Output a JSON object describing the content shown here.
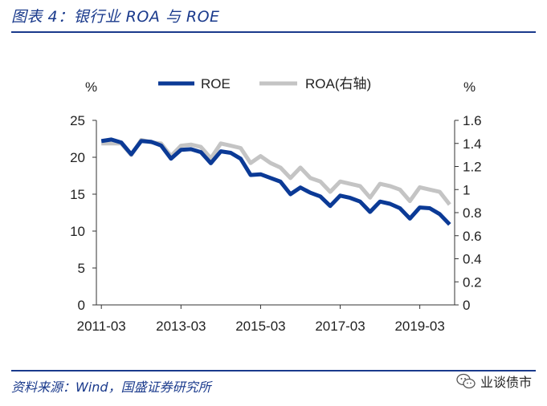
{
  "header": {
    "title": "图表 4：银行业 ROA 与 ROE"
  },
  "footer": {
    "source": "资料来源：Wind，国盛证券研究所",
    "watermark": "业谈债市"
  },
  "colors": {
    "roe": "#0b3a96",
    "roa": "#c4c4c4",
    "accent": "#1a3a8c"
  },
  "chart_data": {
    "type": "line",
    "title": "",
    "x": [
      "2011-03",
      "2011-06",
      "2011-09",
      "2011-12",
      "2012-03",
      "2012-06",
      "2012-09",
      "2012-12",
      "2013-03",
      "2013-06",
      "2013-09",
      "2013-12",
      "2014-03",
      "2014-06",
      "2014-09",
      "2014-12",
      "2015-03",
      "2015-06",
      "2015-09",
      "2015-12",
      "2016-03",
      "2016-06",
      "2016-09",
      "2016-12",
      "2017-03",
      "2017-06",
      "2017-09",
      "2017-12",
      "2018-03",
      "2018-06",
      "2018-09",
      "2018-12",
      "2019-03",
      "2019-06",
      "2019-09",
      "2019-12"
    ],
    "x_ticks": [
      "2011-03",
      "2013-03",
      "2015-03",
      "2017-03",
      "2019-03"
    ],
    "y_left_label": "%",
    "y_right_label": "%",
    "y_left_lim": [
      0,
      25
    ],
    "y_left_ticks": [
      "0",
      "5",
      "10",
      "15",
      "20",
      "25"
    ],
    "y_right_lim": [
      0,
      1.6
    ],
    "y_right_ticks": [
      "0",
      "0.2",
      "0.4",
      "0.6",
      "0.8",
      "1",
      "1.2",
      "1.4",
      "1.6"
    ],
    "legend_position": "top-center",
    "series": [
      {
        "name": "ROE",
        "axis": "left",
        "values": [
          22.2,
          22.4,
          22.0,
          20.4,
          22.2,
          22.1,
          21.6,
          19.8,
          21.0,
          21.1,
          20.7,
          19.2,
          20.8,
          20.6,
          19.8,
          17.6,
          17.7,
          17.2,
          16.7,
          15.0,
          15.9,
          15.2,
          14.7,
          13.4,
          14.8,
          14.5,
          14.0,
          12.6,
          14.0,
          13.7,
          13.1,
          11.7,
          13.2,
          13.1,
          12.3,
          10.9
        ]
      },
      {
        "name": "ROA(右轴)",
        "axis": "right",
        "values": [
          1.4,
          1.4,
          1.4,
          1.3,
          1.43,
          1.41,
          1.4,
          1.29,
          1.38,
          1.39,
          1.37,
          1.27,
          1.4,
          1.38,
          1.36,
          1.23,
          1.29,
          1.23,
          1.19,
          1.1,
          1.19,
          1.1,
          1.07,
          0.98,
          1.07,
          1.05,
          1.03,
          0.93,
          1.05,
          1.03,
          1.0,
          0.9,
          1.02,
          1.0,
          0.98,
          0.87
        ]
      }
    ]
  }
}
